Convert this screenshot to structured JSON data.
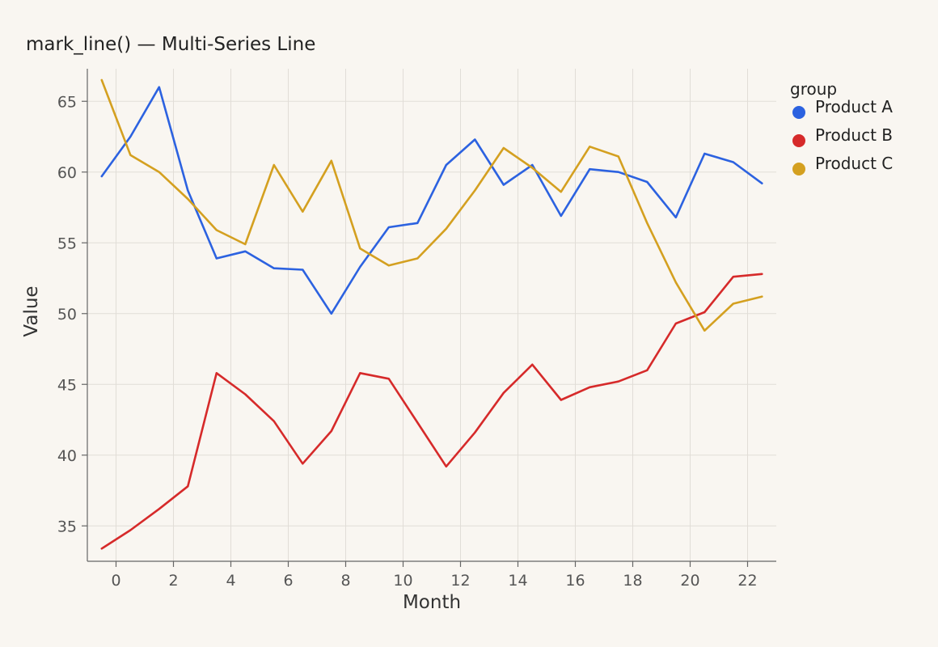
{
  "chart_data": {
    "type": "line",
    "title": "mark_line() — Multi-Series Line",
    "xlabel": "Month",
    "ylabel": "Value",
    "xlim": [
      -1,
      23
    ],
    "ylim": [
      32.5,
      67.3
    ],
    "xticks": [
      0,
      2,
      4,
      6,
      8,
      10,
      12,
      14,
      16,
      18,
      20,
      22
    ],
    "yticks": [
      35,
      40,
      45,
      50,
      55,
      60,
      65
    ],
    "grid": true,
    "legend": {
      "title": "group",
      "placement": "top-right"
    },
    "x": [
      -0.5,
      0.5,
      1.5,
      2.5,
      3.5,
      4.5,
      5.5,
      6.5,
      7.5,
      8.5,
      9.5,
      10.5,
      11.5,
      12.5,
      13.5,
      14.5,
      15.5,
      16.5,
      17.5,
      18.5,
      19.5,
      20.5,
      21.5,
      22.5
    ],
    "series": [
      {
        "name": "Product A",
        "color": "#2c62e0",
        "values": [
          59.7,
          62.5,
          66.0,
          58.7,
          53.9,
          54.4,
          53.2,
          53.1,
          50.0,
          53.3,
          56.1,
          56.4,
          60.5,
          62.3,
          59.1,
          60.5,
          56.9,
          60.2,
          60.0,
          59.3,
          56.8,
          61.3,
          60.7,
          59.2
        ]
      },
      {
        "name": "Product B",
        "color": "#d62a2a",
        "values": [
          33.4,
          34.7,
          36.2,
          37.8,
          45.8,
          44.3,
          42.4,
          39.4,
          41.7,
          45.8,
          45.4,
          42.3,
          39.2,
          41.6,
          44.4,
          46.4,
          43.9,
          44.8,
          45.2,
          46.0,
          49.3,
          50.1,
          52.6,
          52.8
        ]
      },
      {
        "name": "Product C",
        "color": "#d4a020",
        "values": [
          66.5,
          61.2,
          60.0,
          58.1,
          55.9,
          54.9,
          60.5,
          57.2,
          60.8,
          54.6,
          53.4,
          53.9,
          56.0,
          58.7,
          61.7,
          60.3,
          58.6,
          61.8,
          61.1,
          56.4,
          52.2,
          48.8,
          50.7,
          51.2
        ]
      }
    ]
  }
}
